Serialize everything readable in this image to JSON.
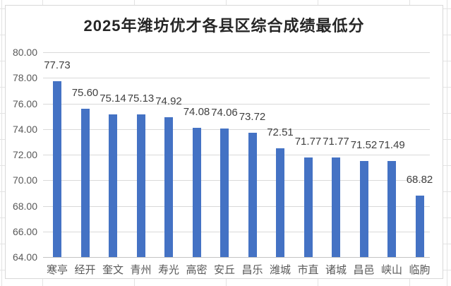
{
  "chart_data": {
    "type": "bar",
    "title": "2025年潍坊优才各县区综合成绩最低分",
    "categories": [
      "寒亭",
      "经开",
      "奎文",
      "青州",
      "寿光",
      "高密",
      "安丘",
      "昌乐",
      "潍城",
      "市直",
      "诸城",
      "昌邑",
      "峡山",
      "临朐"
    ],
    "values": [
      77.73,
      75.6,
      75.14,
      75.13,
      74.92,
      74.08,
      74.06,
      73.72,
      72.51,
      71.77,
      71.77,
      71.52,
      71.49,
      68.82
    ],
    "data_labels": [
      "77.73",
      "75.60",
      "75.14",
      "75.13",
      "74.92",
      "74.08",
      "74.06",
      "73.72",
      "72.51",
      "71.77",
      "71.77",
      "71.52",
      "71.49",
      "68.82"
    ],
    "xlabel": "",
    "ylabel": "",
    "ylim": [
      64,
      80
    ],
    "ytick_step": 2,
    "ytick_labels": [
      "80.00",
      "78.00",
      "76.00",
      "74.00",
      "72.00",
      "70.00",
      "68.00",
      "66.00",
      "64.00"
    ],
    "grid": true,
    "legend_position": "none",
    "colors": {
      "bar": "#4472C4",
      "gridline": "#d9d9d9",
      "axis_line": "#c3c3c3",
      "axis_text": "#595959",
      "data_label_text": "#404040",
      "title_text": "#262626",
      "chart_background": "#ffffff",
      "sheet_gridline": "#e3e3e3"
    }
  }
}
